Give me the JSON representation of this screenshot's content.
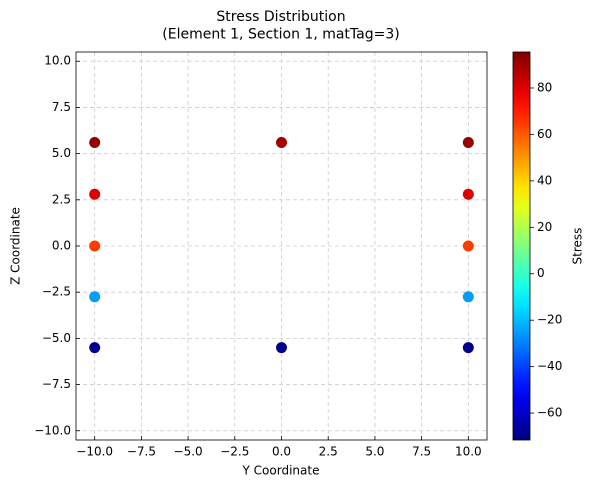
{
  "chart_data": {
    "type": "scatter",
    "title": "Stress Distribution\n(Element 1, Section 1, matTag=3)",
    "x_label": "Y Coordinate",
    "y_label": "Z Coordinate",
    "x": [
      -10,
      0,
      10,
      -10,
      10,
      -10,
      10,
      -10,
      10,
      -10,
      0,
      10
    ],
    "y": [
      5.6,
      5.6,
      5.6,
      2.8,
      2.8,
      0,
      0,
      -2.75,
      -2.75,
      -5.5,
      -5.5,
      -5.5
    ],
    "c": [
      92,
      90,
      92,
      80,
      80,
      65,
      65,
      -25,
      -25,
      -70,
      -70,
      -70
    ],
    "colormap": "jet",
    "colorbar_label": "Stress",
    "clim": [
      -71.6,
      95.5
    ],
    "cticks": [
      {
        "value": -60,
        "label": "−60"
      },
      {
        "value": -40,
        "label": "−40"
      },
      {
        "value": -20,
        "label": "−20"
      },
      0,
      20,
      40,
      60,
      80
    ],
    "xlim": [
      -11,
      11
    ],
    "xticks": [
      {
        "value": -10,
        "label": "−10.0"
      },
      {
        "value": -7.5,
        "label": "−7.5"
      },
      {
        "value": -5,
        "label": "−5.0"
      },
      {
        "value": -2.5,
        "label": "−2.5"
      },
      {
        "value": 0,
        "label": "0.0"
      },
      2.5,
      {
        "value": 5,
        "label": "5.0"
      },
      7.5,
      {
        "value": 10,
        "label": "10.0"
      }
    ],
    "ylim": [
      -10.5,
      10.5
    ],
    "yticks": [
      {
        "value": -10,
        "label": "−10.0"
      },
      {
        "value": -7.5,
        "label": "−7.5"
      },
      {
        "value": -5,
        "label": "−5.0"
      },
      {
        "value": -2.5,
        "label": "−2.5"
      },
      {
        "value": 0,
        "label": "0.0"
      },
      2.5,
      {
        "value": 5,
        "label": "5.0"
      },
      7.5,
      {
        "value": 10,
        "label": "10.0"
      }
    ],
    "grid": true
  }
}
